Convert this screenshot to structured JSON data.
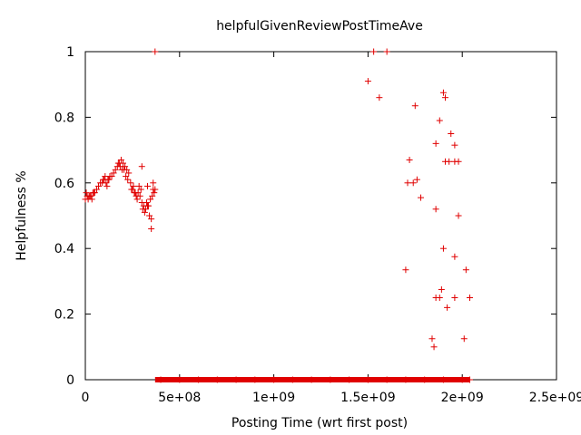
{
  "chart_data": {
    "type": "scatter",
    "title": "helpfulGivenReviewPostTimeAve",
    "xlabel": "Posting Time (wrt first post)",
    "ylabel": "Helpfulness %",
    "xlim": [
      0,
      2500000000
    ],
    "ylim": [
      0,
      1
    ],
    "x_ticks": [
      {
        "value": 0,
        "label": "0"
      },
      {
        "value": 500000000,
        "label": "5e+08"
      },
      {
        "value": 1000000000,
        "label": "1e+09"
      },
      {
        "value": 1500000000,
        "label": "1.5e+09"
      },
      {
        "value": 2000000000,
        "label": "2e+09"
      },
      {
        "value": 2500000000,
        "label": "2.5e+09"
      }
    ],
    "y_ticks": [
      {
        "value": 0,
        "label": "0"
      },
      {
        "value": 0.2,
        "label": "0.2"
      },
      {
        "value": 0.4,
        "label": "0.4"
      },
      {
        "value": 0.6,
        "label": "0.6"
      },
      {
        "value": 0.8,
        "label": "0.8"
      },
      {
        "value": 1,
        "label": "1"
      }
    ],
    "marker": "plus",
    "color": "#e00000",
    "grid": false,
    "legend": "none",
    "x": [
      0,
      10000000,
      20000000,
      30000000,
      40000000,
      50000000,
      60000000,
      70000000,
      80000000,
      90000000,
      100000000,
      110000000,
      120000000,
      130000000,
      140000000,
      150000000,
      160000000,
      170000000,
      180000000,
      190000000,
      200000000,
      210000000,
      220000000,
      230000000,
      240000000,
      250000000,
      260000000,
      270000000,
      280000000,
      290000000,
      300000000,
      310000000,
      320000000,
      330000000,
      340000000,
      350000000,
      360000000,
      370000000,
      5000000,
      15000000,
      25000000,
      35000000,
      45000000,
      95000000,
      105000000,
      115000000,
      125000000,
      175000000,
      185000000,
      195000000,
      205000000,
      215000000,
      225000000,
      245000000,
      255000000,
      265000000,
      275000000,
      285000000,
      295000000,
      305000000,
      315000000,
      325000000,
      335000000,
      345000000,
      355000000,
      365000000,
      300000000,
      330000000,
      350000000,
      360000000,
      370000000,
      1500000000,
      1530000000,
      1560000000,
      1600000000,
      1720000000,
      1760000000,
      1900000000,
      1910000000,
      1880000000,
      1750000000,
      1940000000,
      1960000000,
      1910000000,
      1930000000,
      1960000000,
      1980000000,
      1860000000,
      1740000000,
      1710000000,
      1780000000,
      1860000000,
      1980000000,
      1900000000,
      1960000000,
      1700000000,
      2020000000,
      1890000000,
      1860000000,
      1880000000,
      1960000000,
      2040000000,
      1920000000,
      1840000000,
      2010000000,
      1850000000,
      400000000,
      500000000,
      600000000,
      700000000,
      800000000,
      900000000,
      1000000000,
      1100000000,
      1200000000,
      1300000000,
      1400000000,
      1500000000,
      1600000000,
      1700000000,
      1800000000,
      1900000000,
      2000000000,
      2040000000
    ],
    "y": [
      0.55,
      0.56,
      0.56,
      0.56,
      0.57,
      0.57,
      0.58,
      0.59,
      0.6,
      0.6,
      0.61,
      0.6,
      0.61,
      0.62,
      0.62,
      0.63,
      0.64,
      0.65,
      0.66,
      0.67,
      0.66,
      0.65,
      0.64,
      0.63,
      0.6,
      0.58,
      0.57,
      0.56,
      0.57,
      0.56,
      0.54,
      0.53,
      0.52,
      0.53,
      0.5,
      0.49,
      0.58,
      0.58,
      0.57,
      0.55,
      0.56,
      0.55,
      0.57,
      0.61,
      0.62,
      0.59,
      0.61,
      0.66,
      0.65,
      0.64,
      0.64,
      0.62,
      0.61,
      0.58,
      0.59,
      0.57,
      0.55,
      0.59,
      0.58,
      0.52,
      0.51,
      0.54,
      0.53,
      0.55,
      0.56,
      0.57,
      0.65,
      0.59,
      0.46,
      0.6,
      1.0,
      0.91,
      1.0,
      0.86,
      1.0,
      0.67,
      0.61,
      0.875,
      0.86,
      0.79,
      0.835,
      0.75,
      0.715,
      0.665,
      0.665,
      0.665,
      0.665,
      0.72,
      0.6,
      0.6,
      0.555,
      0.52,
      0.5,
      0.4,
      0.375,
      0.335,
      0.335,
      0.275,
      0.25,
      0.25,
      0.25,
      0.25,
      0.22,
      0.125,
      0.125,
      0.1,
      0,
      0,
      0,
      0,
      0,
      0,
      0,
      0,
      0,
      0,
      0,
      0,
      0,
      0,
      0,
      0,
      0,
      0
    ]
  }
}
